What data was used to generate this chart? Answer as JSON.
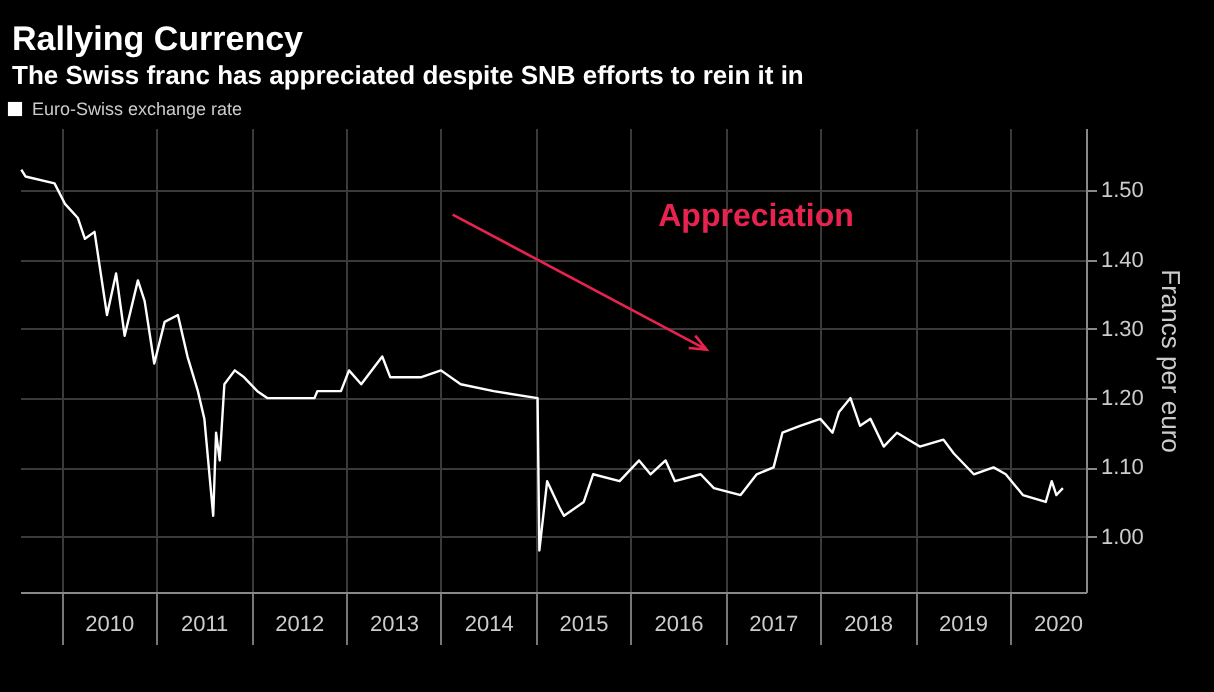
{
  "chart_data": {
    "type": "line",
    "title": "Rallying Currency",
    "subtitle": "The Swiss franc has appreciated despite SNB efforts to rein it in",
    "ylabel": "Francs per euro",
    "annotations": [
      "Appreciation"
    ],
    "x": [
      "2009-07-30",
      "2009-08-15",
      "2009-12-05",
      "2010-01-15",
      "2010-03-05",
      "2010-04-01",
      "2010-05-08",
      "2010-06-25",
      "2010-07-30",
      "2010-09-01",
      "2010-10-22",
      "2010-11-17",
      "2010-12-24",
      "2011-02-02",
      "2011-03-25",
      "2011-05-01",
      "2011-06-10",
      "2011-07-05",
      "2011-08-08",
      "2011-08-19",
      "2011-09-02",
      "2011-09-20",
      "2011-10-30",
      "2011-12-05",
      "2012-01-25",
      "2012-03-03",
      "2012-09-01",
      "2012-09-12",
      "2012-12-12",
      "2013-01-12",
      "2013-02-28",
      "2013-05-20",
      "2013-06-20",
      "2013-10-15",
      "2014-01-01",
      "2014-03-18",
      "2014-07-23",
      "2015-01-08",
      "2015-01-15",
      "2015-02-14",
      "2015-04-05",
      "2015-04-20",
      "2015-07-05",
      "2015-08-10",
      "2015-11-20",
      "2016-02-03",
      "2016-03-18",
      "2016-05-15",
      "2016-06-20",
      "2016-09-27",
      "2016-11-17",
      "2017-02-28",
      "2017-05-01",
      "2017-07-05",
      "2017-08-08",
      "2017-10-15",
      "2018-01-01",
      "2018-02-17",
      "2018-03-14",
      "2018-04-27",
      "2018-06-03",
      "2018-07-13",
      "2018-09-02",
      "2018-10-23",
      "2019-01-19",
      "2019-04-20",
      "2019-05-30",
      "2019-08-15",
      "2019-10-30",
      "2019-12-16",
      "2020-02-20",
      "2020-05-18",
      "2020-06-10",
      "2020-06-28",
      "2020-07-23"
    ],
    "series": [
      {
        "name": "Euro-Swiss exchange rate",
        "color": "#ffffff",
        "values": [
          1.53,
          1.52,
          1.51,
          1.48,
          1.46,
          1.43,
          1.44,
          1.32,
          1.38,
          1.29,
          1.37,
          1.34,
          1.25,
          1.31,
          1.32,
          1.26,
          1.21,
          1.17,
          1.03,
          1.15,
          1.11,
          1.22,
          1.24,
          1.23,
          1.21,
          1.2,
          1.2,
          1.21,
          1.21,
          1.24,
          1.22,
          1.26,
          1.23,
          1.23,
          1.24,
          1.22,
          1.21,
          1.2,
          0.98,
          1.08,
          1.04,
          1.03,
          1.05,
          1.09,
          1.08,
          1.11,
          1.09,
          1.11,
          1.08,
          1.09,
          1.07,
          1.06,
          1.09,
          1.1,
          1.15,
          1.16,
          1.17,
          1.15,
          1.18,
          1.2,
          1.16,
          1.17,
          1.13,
          1.15,
          1.13,
          1.14,
          1.12,
          1.09,
          1.1,
          1.09,
          1.06,
          1.05,
          1.08,
          1.06,
          1.07
        ]
      }
    ],
    "xlim": [
      "2009-07-25",
      "2020-10-20"
    ],
    "xticks": [
      {
        "value": "2010-01-01",
        "label": null
      },
      {
        "value": "2010-07-02",
        "label": "2010"
      },
      {
        "value": "2011-01-01",
        "label": null
      },
      {
        "value": "2011-07-02",
        "label": "2011"
      },
      {
        "value": "2012-01-01",
        "label": null
      },
      {
        "value": "2012-07-02",
        "label": "2012"
      },
      {
        "value": "2013-01-01",
        "label": null
      },
      {
        "value": "2013-07-02",
        "label": "2013"
      },
      {
        "value": "2014-01-01",
        "label": null
      },
      {
        "value": "2014-07-02",
        "label": "2014"
      },
      {
        "value": "2015-01-01",
        "label": null
      },
      {
        "value": "2015-07-02",
        "label": "2015"
      },
      {
        "value": "2016-01-01",
        "label": null
      },
      {
        "value": "2016-07-02",
        "label": "2016"
      },
      {
        "value": "2017-01-01",
        "label": null
      },
      {
        "value": "2017-07-02",
        "label": "2017"
      },
      {
        "value": "2018-01-01",
        "label": null
      },
      {
        "value": "2018-07-02",
        "label": "2018"
      },
      {
        "value": "2019-01-01",
        "label": null
      },
      {
        "value": "2019-07-02",
        "label": "2019"
      },
      {
        "value": "2020-01-01",
        "label": null
      },
      {
        "value": "2020-07-02",
        "label": "2020"
      }
    ],
    "ylim": [
      0.92,
      1.59
    ],
    "yticks": [
      {
        "value": 1.0,
        "label": "1.00"
      },
      {
        "value": 1.1,
        "label": "1.10"
      },
      {
        "value": 1.2,
        "label": "1.20"
      },
      {
        "value": 1.3,
        "label": "1.30"
      },
      {
        "value": 1.4,
        "label": "1.40"
      },
      {
        "value": 1.5,
        "label": "1.50"
      }
    ],
    "grid": true,
    "legend": "top left"
  }
}
